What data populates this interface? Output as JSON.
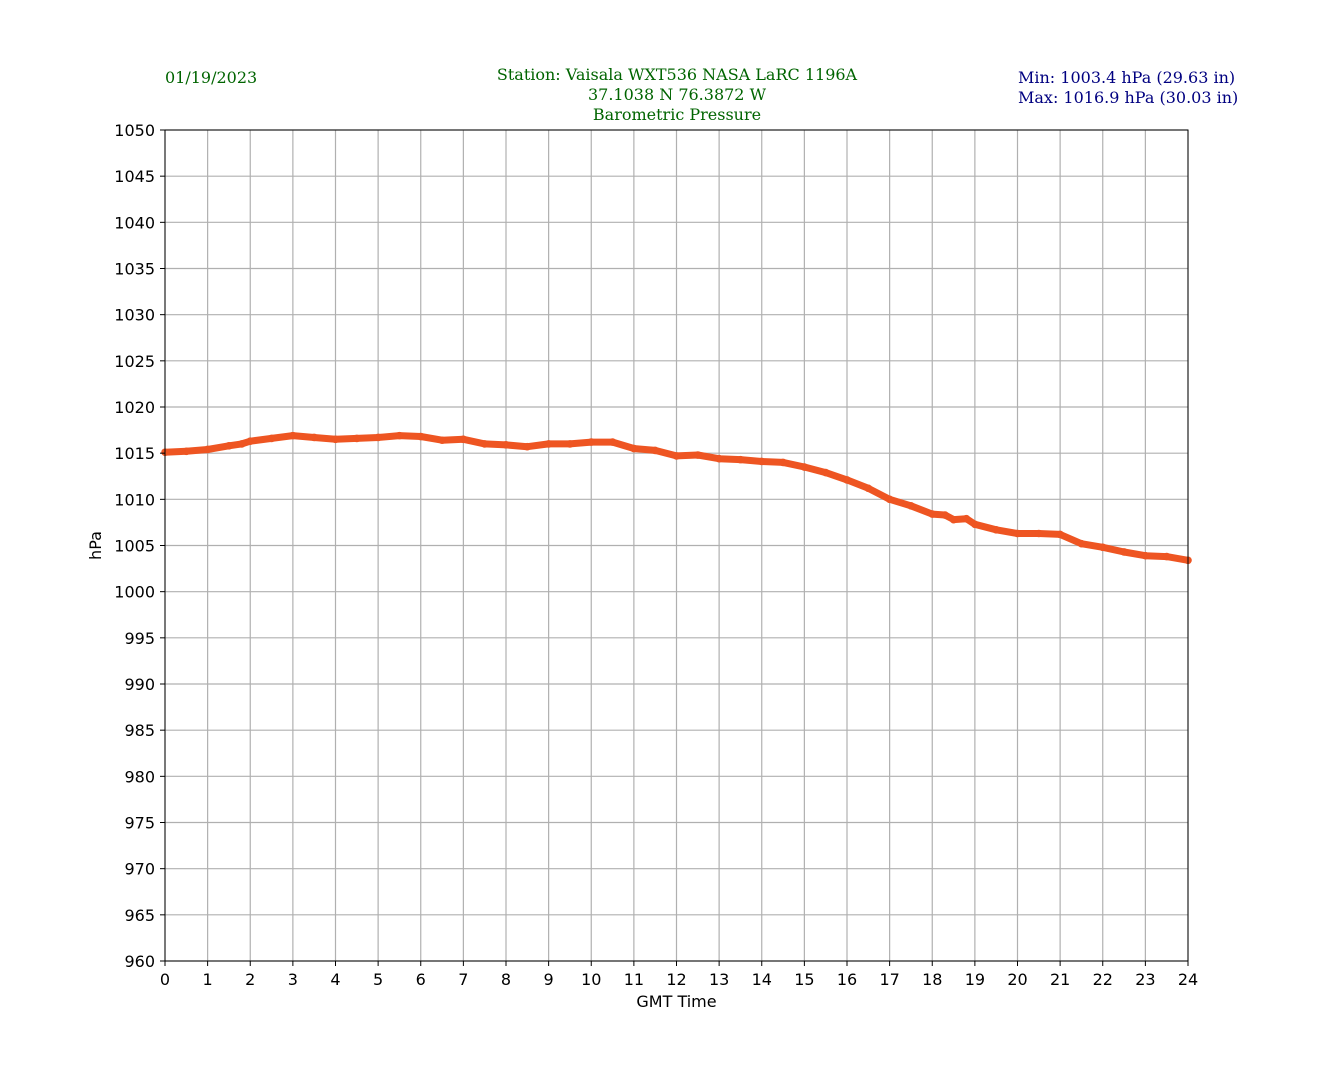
{
  "header": {
    "date": "01/19/2023",
    "title_lines": [
      "Station:  Vaisala WXT536  NASA LaRC 1196A",
      "37.1038 N 76.3872 W",
      "Barometric Pressure"
    ],
    "min_label": "Min: 1003.4 hPa (29.63 in)",
    "max_label": "Max: 1016.9 hPa (30.03 in)"
  },
  "colors": {
    "header_text": "#006400",
    "minmax_text": "#000080",
    "series": "#ee5522",
    "grid": "#b0b0b0"
  },
  "chart_data": {
    "type": "line",
    "title": "Barometric Pressure",
    "xlabel": "GMT Time",
    "ylabel": "hPa",
    "xlim": [
      0,
      24
    ],
    "ylim": [
      960,
      1050
    ],
    "xticks": [
      "0",
      "1",
      "2",
      "3",
      "4",
      "5",
      "6",
      "7",
      "8",
      "9",
      "10",
      "11",
      "12",
      "13",
      "14",
      "15",
      "16",
      "17",
      "18",
      "19",
      "20",
      "21",
      "22",
      "23",
      "24"
    ],
    "yticks": [
      "960",
      "965",
      "970",
      "975",
      "980",
      "985",
      "990",
      "995",
      "1000",
      "1005",
      "1010",
      "1015",
      "1020",
      "1025",
      "1030",
      "1035",
      "1040",
      "1045",
      "1050"
    ],
    "grid": true,
    "series": [
      {
        "x": [
          0,
          0.5,
          1,
          1.5,
          1.8,
          2,
          2.5,
          3,
          3.5,
          4,
          4.5,
          5,
          5.5,
          6,
          6.5,
          7,
          7.5,
          8,
          8.5,
          9,
          9.5,
          10,
          10.5,
          11,
          11.5,
          12,
          12.5,
          13,
          13.5,
          14,
          14.5,
          15,
          15.5,
          16,
          16.5,
          17,
          17.5,
          18,
          18.3,
          18.5,
          18.8,
          19,
          19.5,
          20,
          20.5,
          21,
          21.5,
          22,
          22.5,
          23,
          23.5,
          24
        ],
        "y": [
          1015.1,
          1015.2,
          1015.4,
          1015.8,
          1016.0,
          1016.3,
          1016.6,
          1016.9,
          1016.7,
          1016.5,
          1016.6,
          1016.7,
          1016.9,
          1016.8,
          1016.4,
          1016.5,
          1016.0,
          1015.9,
          1015.7,
          1016.0,
          1016.0,
          1016.2,
          1016.2,
          1015.5,
          1015.3,
          1014.7,
          1014.8,
          1014.4,
          1014.3,
          1014.1,
          1014.0,
          1013.5,
          1012.9,
          1012.1,
          1011.2,
          1010.0,
          1009.3,
          1008.4,
          1008.3,
          1007.8,
          1007.9,
          1007.3,
          1006.7,
          1006.3,
          1006.3,
          1006.2,
          1005.2,
          1004.8,
          1004.3,
          1003.9,
          1003.8,
          1003.4
        ]
      }
    ]
  }
}
